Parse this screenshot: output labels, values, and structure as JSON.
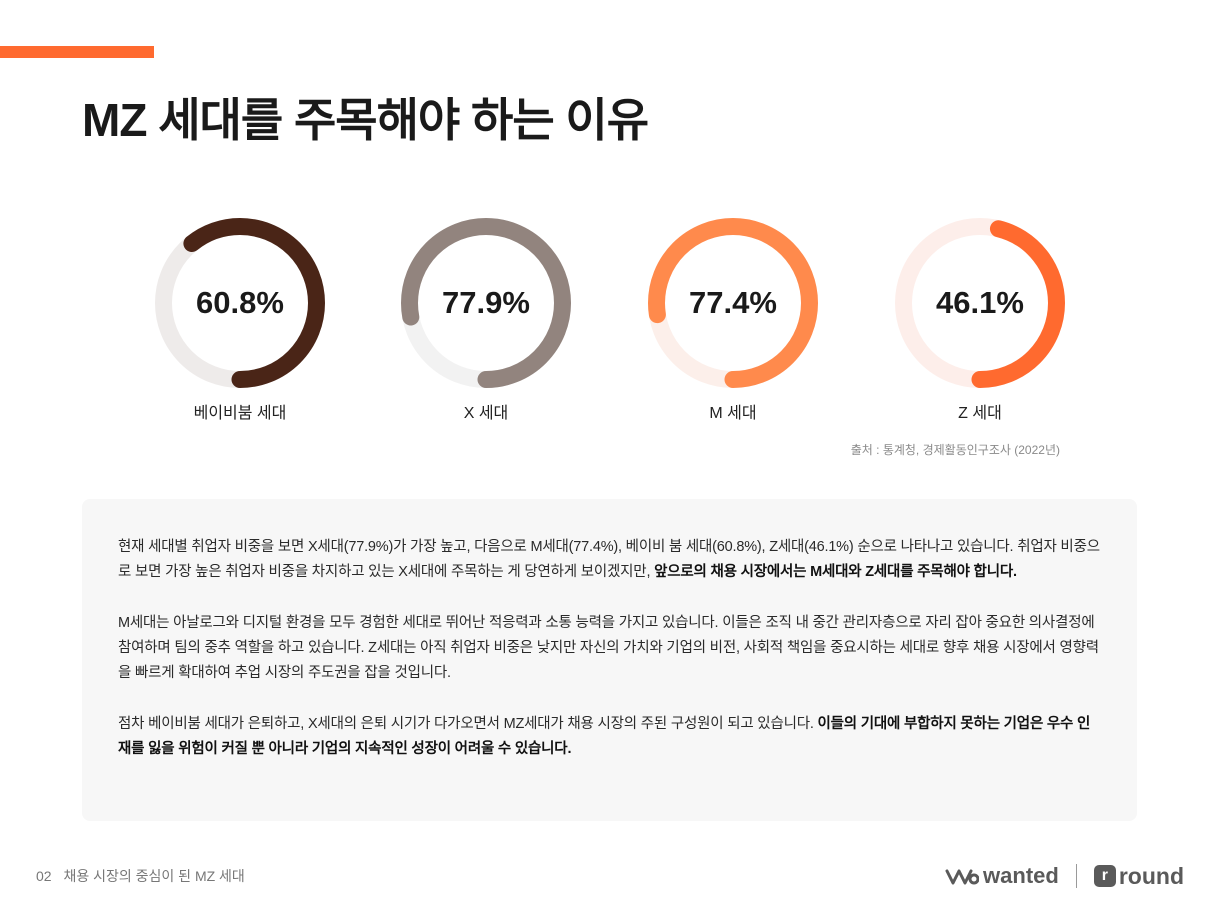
{
  "title": "MZ 세대를 주목해야 하는 이유",
  "chart_data": {
    "type": "pie",
    "variant": "donut",
    "categories": [
      "베이비붐 세대",
      "X 세대",
      "M 세대",
      "Z 세대"
    ],
    "values": [
      60.8,
      77.9,
      77.4,
      46.1
    ],
    "value_labels": [
      "60.8%",
      "77.9%",
      "77.4%",
      "46.1%"
    ],
    "unit": "%",
    "colors": [
      "#4a2517",
      "#92847e",
      "#ff8a4c",
      "#ff6a2f"
    ],
    "track_colors": [
      "#eeebea",
      "#f2f2f2",
      "#fcefea",
      "#fdeeea"
    ],
    "source": "출처 : 통계청, 경제활동인구조사 (2022년)"
  },
  "body": {
    "p1": [
      {
        "text": "현재 세대별 취업자 비중을 보면 X세대(77.9%)가 가장 높고, 다음으로 M세대(77.4%), 베이비 붐 세대(60.8%), Z세대(46.1%) 순으로 나타나고 있습니다. 취업자 비중으로 보면 가장 높은 취업자 비중을 차지하고 있는 X세대에 주목하는 게 당연하게 보이겠지만, ",
        "bold": false
      },
      {
        "text": "앞으로의 채용 시장에서는 M세대와 Z세대를 주목해야 합니다.",
        "bold": true
      }
    ],
    "p2": [
      {
        "text": "M세대는 아날로그와 디지털 환경을 모두 경험한 세대로 뛰어난 적응력과 소통 능력을 가지고 있습니다. 이들은 조직 내 중간 관리자층으로 자리 잡아 중요한 의사결정에 참여하며 팀의 중추 역할을 하고 있습니다. Z세대는 아직 취업자 비중은 낮지만 자신의 가치와 기업의 비전, 사회적 책임을 중요시하는 세대로 향후 채용 시장에서 영향력을 빠르게 확대하여 추업 시장의 주도권을 잡을 것입니다.",
        "bold": false
      }
    ],
    "p3": [
      {
        "text": "점차 베이비붐 세대가 은퇴하고, X세대의 은퇴 시기가 다가오면서 MZ세대가 채용 시장의 주된 구성원이 되고 있습니다. ",
        "bold": false
      },
      {
        "text": "이들의 기대에 부합하지 못하는 기업은 우수 인재를 잃을 위험이 커질 뿐 아니라 기업의 지속적인 성장이 어려울 수 있습니다.",
        "bold": true
      }
    ]
  },
  "footer": {
    "page_number": "02",
    "section": "채용 시장의 중심이 된 MZ 세대",
    "logo_wanted": "wanted",
    "logo_round_mark": "r",
    "logo_round": "round"
  },
  "icons": {
    "wanted_logo": "wanted-wave-logo-icon",
    "round_logo": "round-r-logo-icon"
  },
  "colors": {
    "accent": "#ff6a2f",
    "panel": "#f7f7f7"
  }
}
